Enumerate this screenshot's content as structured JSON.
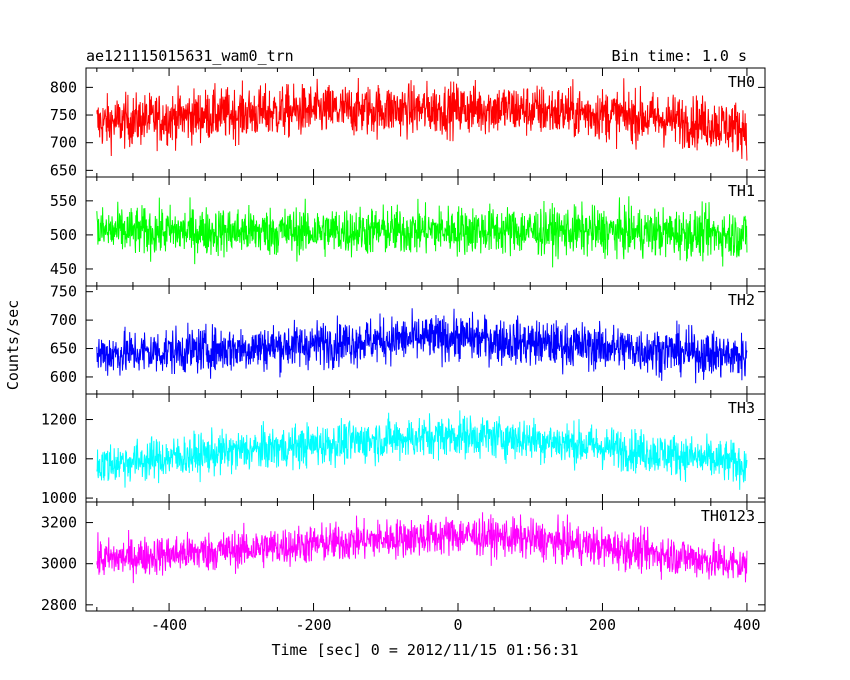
{
  "header": {
    "title": "ae121115015631_wam0_trn",
    "bin_time": "Bin time: 1.0 s"
  },
  "axes": {
    "ylabel": "Counts/sec",
    "xlabel": "Time [sec] 0 = 2012/11/15 01:56:31"
  },
  "chart_data": {
    "type": "line",
    "title": "ae121115015631_wam0_trn",
    "xlabel": "Time [sec] 0 = 2012/11/15 01:56:31",
    "ylabel": "Counts/sec",
    "xlim": [
      -515,
      425
    ],
    "x_ticks": [
      -400,
      -200,
      0,
      200,
      400
    ],
    "x_range_data": [
      -500,
      400
    ],
    "bin_time_s": 1.0,
    "panels": [
      {
        "name": "TH0",
        "color": "#ff0000",
        "ylim": [
          638,
          835
        ],
        "yticks": [
          650,
          700,
          750,
          800
        ],
        "trend_x": [
          -500,
          -350,
          -200,
          -50,
          50,
          200,
          350,
          400
        ],
        "trend_y": [
          735,
          750,
          758,
          760,
          762,
          752,
          735,
          725
        ],
        "noise_amplitude": 42
      },
      {
        "name": "TH1",
        "color": "#00ff00",
        "ylim": [
          425,
          585
        ],
        "yticks": [
          450,
          500,
          550
        ],
        "trend_x": [
          -500,
          -200,
          0,
          200,
          400
        ],
        "trend_y": [
          505,
          505,
          507,
          505,
          500
        ],
        "noise_amplitude": 32
      },
      {
        "name": "TH2",
        "color": "#0000ff",
        "ylim": [
          570,
          760
        ],
        "yticks": [
          600,
          650,
          700,
          750
        ],
        "trend_x": [
          -500,
          -300,
          -100,
          0,
          100,
          300,
          400
        ],
        "trend_y": [
          640,
          650,
          665,
          670,
          660,
          645,
          635
        ],
        "noise_amplitude": 36
      },
      {
        "name": "TH3",
        "color": "#00ffff",
        "ylim": [
          990,
          1265
        ],
        "yticks": [
          1000,
          1100,
          1200
        ],
        "trend_x": [
          -500,
          -300,
          -100,
          0,
          100,
          300,
          400
        ],
        "trend_y": [
          1085,
          1120,
          1150,
          1160,
          1150,
          1110,
          1085
        ],
        "noise_amplitude": 48
      },
      {
        "name": "TH0123",
        "color": "#ff00ff",
        "ylim": [
          2770,
          3300
        ],
        "yticks": [
          2800,
          3000,
          3200
        ],
        "trend_x": [
          -500,
          -300,
          -100,
          0,
          100,
          300,
          400
        ],
        "trend_y": [
          3020,
          3070,
          3120,
          3140,
          3120,
          3040,
          2990
        ],
        "noise_amplitude": 85
      }
    ]
  }
}
